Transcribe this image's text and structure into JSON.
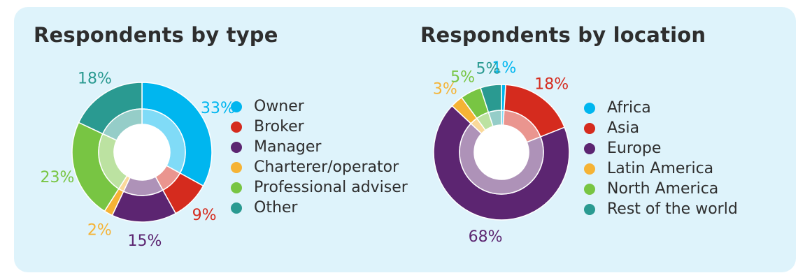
{
  "chart_data": [
    {
      "type": "pie",
      "title": "Respondents by type",
      "categories": [
        "Owner",
        "Broker",
        "Manager",
        "Charterer/operator",
        "Professional adviser",
        "Other"
      ],
      "values": [
        33,
        9,
        15,
        2,
        23,
        18
      ],
      "value_labels": [
        "33%",
        "9%",
        "15%",
        "2%",
        "23%",
        "18%"
      ],
      "colors": [
        "#00b6ef",
        "#d52b1e",
        "#5c2571",
        "#f5b335",
        "#78c543",
        "#2a9a91"
      ],
      "legend_placement": "right"
    },
    {
      "type": "pie",
      "title": "Respondents by location",
      "categories": [
        "Africa",
        "Asia",
        "Europe",
        "Latin America",
        "North America",
        "Rest of the world"
      ],
      "values": [
        1,
        18,
        68,
        3,
        5,
        5
      ],
      "value_labels": [
        "1%",
        "18%",
        "68%",
        "3%",
        "5%",
        "5%"
      ],
      "colors": [
        "#00b6ef",
        "#d52b1e",
        "#5c2571",
        "#f5b335",
        "#78c543",
        "#2a9a91"
      ],
      "legend_placement": "right"
    }
  ]
}
